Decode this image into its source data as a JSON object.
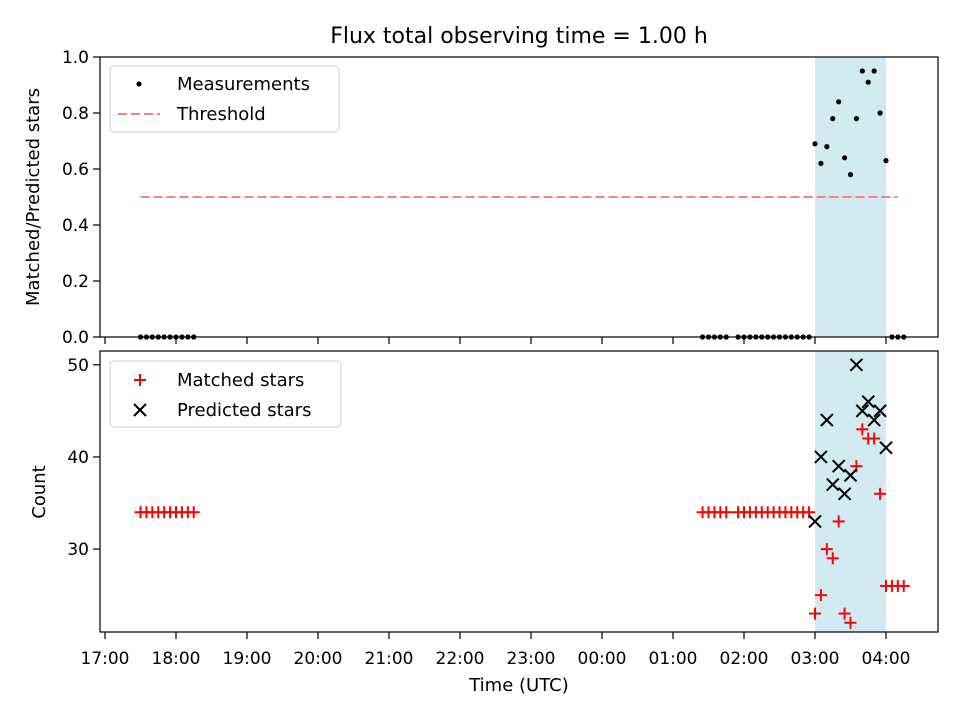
{
  "chart_data": [
    {
      "type": "scatter",
      "title": "Flux total observing time = 1.00 h",
      "ylabel": "Matched/Predicted stars",
      "ylim": [
        0,
        1
      ],
      "yticks": [
        "0.0",
        "0.2",
        "0.4",
        "0.6",
        "0.8",
        "1.0"
      ],
      "highlight_band": [
        "03:00",
        "04:00"
      ],
      "band_color": "#add8e6",
      "legend": {
        "placement": "upper-left",
        "entries": [
          "Measurements",
          "Threshold"
        ]
      },
      "threshold": {
        "y": 0.5,
        "x_start": "17:30",
        "x_end": "04:10",
        "color": "#ff7f7f"
      },
      "series": [
        {
          "name": "Measurements",
          "color": "#000000",
          "marker": "dot",
          "points": [
            [
              "17:30",
              0
            ],
            [
              "17:35",
              0
            ],
            [
              "17:40",
              0
            ],
            [
              "17:45",
              0
            ],
            [
              "17:50",
              0
            ],
            [
              "17:55",
              0
            ],
            [
              "18:00",
              0
            ],
            [
              "18:05",
              0
            ],
            [
              "18:10",
              0
            ],
            [
              "18:15",
              0
            ],
            [
              "01:25",
              0
            ],
            [
              "01:30",
              0
            ],
            [
              "01:35",
              0
            ],
            [
              "01:40",
              0
            ],
            [
              "01:45",
              0
            ],
            [
              "01:55",
              0
            ],
            [
              "02:00",
              0
            ],
            [
              "02:05",
              0
            ],
            [
              "02:10",
              0
            ],
            [
              "02:15",
              0
            ],
            [
              "02:20",
              0
            ],
            [
              "02:25",
              0
            ],
            [
              "02:30",
              0
            ],
            [
              "02:35",
              0
            ],
            [
              "02:40",
              0
            ],
            [
              "02:45",
              0
            ],
            [
              "02:50",
              0
            ],
            [
              "02:55",
              0
            ],
            [
              "03:00",
              0.69
            ],
            [
              "03:05",
              0.62
            ],
            [
              "03:10",
              0.68
            ],
            [
              "03:15",
              0.78
            ],
            [
              "03:20",
              0.84
            ],
            [
              "03:25",
              0.64
            ],
            [
              "03:30",
              0.58
            ],
            [
              "03:35",
              0.78
            ],
            [
              "03:40",
              0.95
            ],
            [
              "03:45",
              0.91
            ],
            [
              "03:50",
              0.95
            ],
            [
              "03:55",
              0.8
            ],
            [
              "04:00",
              0.63
            ],
            [
              "04:05",
              0
            ],
            [
              "04:10",
              0
            ],
            [
              "04:15",
              0
            ]
          ]
        }
      ]
    },
    {
      "type": "scatter",
      "xlabel": "Time (UTC)",
      "ylabel": "Count",
      "ylim": [
        21,
        51.5
      ],
      "yticks": [
        "30",
        "40",
        "50"
      ],
      "xticks": [
        "17:00",
        "18:00",
        "19:00",
        "20:00",
        "21:00",
        "22:00",
        "23:00",
        "00:00",
        "01:00",
        "02:00",
        "03:00",
        "04:00"
      ],
      "highlight_band": [
        "03:00",
        "04:00"
      ],
      "band_color": "#add8e6",
      "legend": {
        "placement": "upper-left",
        "entries": [
          "Matched stars",
          "Predicted stars"
        ]
      },
      "series": [
        {
          "name": "Matched stars",
          "color": "#ff0000",
          "marker": "plus",
          "points": [
            [
              "17:30",
              34
            ],
            [
              "17:35",
              34
            ],
            [
              "17:40",
              34
            ],
            [
              "17:45",
              34
            ],
            [
              "17:50",
              34
            ],
            [
              "17:55",
              34
            ],
            [
              "18:00",
              34
            ],
            [
              "18:05",
              34
            ],
            [
              "18:10",
              34
            ],
            [
              "18:15",
              34
            ],
            [
              "01:25",
              34
            ],
            [
              "01:30",
              34
            ],
            [
              "01:35",
              34
            ],
            [
              "01:40",
              34
            ],
            [
              "01:45",
              34
            ],
            [
              "01:55",
              34
            ],
            [
              "02:00",
              34
            ],
            [
              "02:05",
              34
            ],
            [
              "02:10",
              34
            ],
            [
              "02:15",
              34
            ],
            [
              "02:20",
              34
            ],
            [
              "02:25",
              34
            ],
            [
              "02:30",
              34
            ],
            [
              "02:35",
              34
            ],
            [
              "02:40",
              34
            ],
            [
              "02:45",
              34
            ],
            [
              "02:50",
              34
            ],
            [
              "02:55",
              34
            ],
            [
              "03:00",
              23
            ],
            [
              "03:05",
              25
            ],
            [
              "03:10",
              30
            ],
            [
              "03:15",
              29
            ],
            [
              "03:20",
              33
            ],
            [
              "03:25",
              23
            ],
            [
              "03:30",
              22
            ],
            [
              "03:35",
              39
            ],
            [
              "03:40",
              43
            ],
            [
              "03:45",
              42
            ],
            [
              "03:50",
              42
            ],
            [
              "03:55",
              36
            ],
            [
              "04:00",
              26
            ],
            [
              "04:05",
              26
            ],
            [
              "04:10",
              26
            ],
            [
              "04:15",
              26
            ]
          ]
        },
        {
          "name": "Predicted stars",
          "color": "#000000",
          "marker": "x",
          "points": [
            [
              "03:00",
              33
            ],
            [
              "03:05",
              40
            ],
            [
              "03:10",
              44
            ],
            [
              "03:15",
              37
            ],
            [
              "03:20",
              39
            ],
            [
              "03:25",
              36
            ],
            [
              "03:30",
              38
            ],
            [
              "03:35",
              50
            ],
            [
              "03:40",
              45
            ],
            [
              "03:45",
              46
            ],
            [
              "03:50",
              44
            ],
            [
              "03:55",
              45
            ],
            [
              "04:00",
              41
            ]
          ]
        }
      ]
    }
  ]
}
